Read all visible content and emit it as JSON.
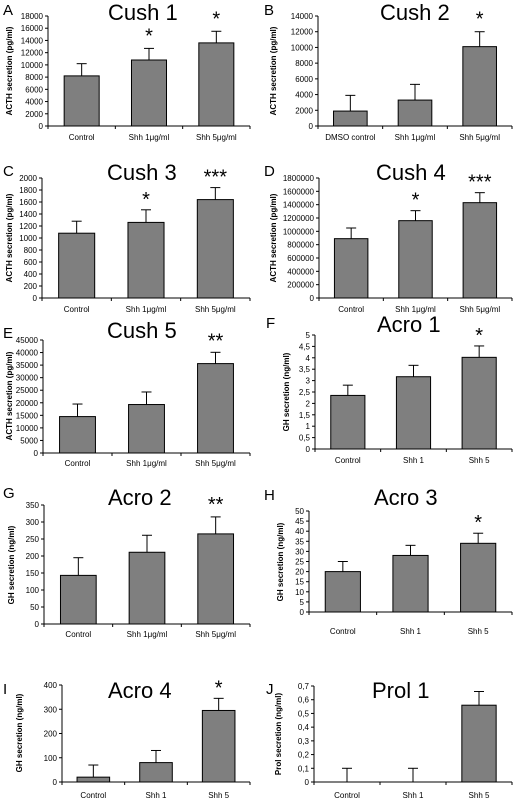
{
  "chart_data": [
    {
      "type": "bar",
      "panel": "A",
      "title": "Cush 1",
      "ylabel": "ACTH secretion (pg/ml)",
      "ylim": [
        0,
        18000
      ],
      "yticks": [
        "0",
        "2000",
        "4000",
        "6000",
        "8000",
        "10000",
        "12000",
        "14000",
        "16000",
        "18000"
      ],
      "categories": [
        "Control",
        "Shh 1μg/ml",
        "Shh 5μg/ml"
      ],
      "values": [
        8200,
        10800,
        13600
      ],
      "errors": [
        2000,
        1900,
        1900
      ],
      "significance": [
        "",
        "*",
        "*"
      ]
    },
    {
      "type": "bar",
      "panel": "B",
      "title": "Cush 2",
      "ylabel": "ACTH secretion (pg/ml)",
      "ylim": [
        0,
        14000
      ],
      "yticks": [
        "0",
        "2000",
        "4000",
        "6000",
        "8000",
        "10000",
        "12000",
        "14000"
      ],
      "categories": [
        "DMSO control",
        "Shh 1μg/ml",
        "Shh 5μg/ml"
      ],
      "values": [
        1900,
        3300,
        10100
      ],
      "errors": [
        2000,
        2000,
        1900
      ],
      "significance": [
        "",
        "",
        "*"
      ]
    },
    {
      "type": "bar",
      "panel": "C",
      "title": "Cush 3",
      "ylabel": "ACTH secretion (pg/ml)",
      "ylim": [
        0,
        2000
      ],
      "yticks": [
        "0",
        "200",
        "400",
        "600",
        "800",
        "1000",
        "1200",
        "1400",
        "1600",
        "1800",
        "2000"
      ],
      "categories": [
        "Control",
        "Shh 1μg/ml",
        "Shh 5μg/ml"
      ],
      "values": [
        1080,
        1260,
        1640
      ],
      "errors": [
        200,
        210,
        200
      ],
      "significance": [
        "",
        "*",
        "***"
      ]
    },
    {
      "type": "bar",
      "panel": "D",
      "title": "Cush 4",
      "ylabel": "ACTH secretion (pg/ml)",
      "ylim": [
        0,
        1800000
      ],
      "yticks": [
        "0",
        "200000",
        "400000",
        "600000",
        "800000",
        "1000000",
        "1200000",
        "1400000",
        "1600000",
        "1800000"
      ],
      "categories": [
        "Control",
        "Shh 1μg/ml",
        "Shh 5μg/ml"
      ],
      "values": [
        890000,
        1160000,
        1430000
      ],
      "errors": [
        160000,
        150000,
        150000
      ],
      "significance": [
        "",
        "*",
        "***"
      ]
    },
    {
      "type": "bar",
      "panel": "E",
      "title": "Cush 5",
      "ylabel": "ACTH secretion (pg/ml)",
      "ylim": [
        0,
        45000
      ],
      "yticks": [
        "0",
        "5000",
        "10000",
        "15000",
        "20000",
        "25000",
        "30000",
        "35000",
        "40000",
        "45000"
      ],
      "categories": [
        "Control",
        "Shh 1μg/ml",
        "Shh 5μg/ml"
      ],
      "values": [
        14500,
        19300,
        35600
      ],
      "errors": [
        5000,
        5000,
        4500
      ],
      "significance": [
        "",
        "",
        "**"
      ]
    },
    {
      "type": "bar",
      "panel": "F",
      "title": "Acro 1",
      "ylabel": "GH secretion (ng/ml)",
      "ylim": [
        0,
        5
      ],
      "yticks": [
        "0",
        "0,5",
        "1",
        "1,5",
        "2",
        "2,5",
        "3",
        "3,5",
        "4",
        "4,5",
        "5"
      ],
      "categories": [
        "Control",
        "Shh 1",
        "Shh 5"
      ],
      "values": [
        2.35,
        3.17,
        4.02
      ],
      "errors": [
        0.45,
        0.5,
        0.5
      ],
      "significance": [
        "",
        "",
        "*"
      ]
    },
    {
      "type": "bar",
      "panel": "G",
      "title": "Acro 2",
      "ylabel": "GH secretion (ng/ml)",
      "ylim": [
        0,
        350
      ],
      "yticks": [
        "0",
        "50",
        "100",
        "150",
        "200",
        "250",
        "300",
        "350"
      ],
      "categories": [
        "Control",
        "Shh 1μg/ml",
        "Shh 5μg/ml"
      ],
      "values": [
        143,
        211,
        265
      ],
      "errors": [
        52,
        50,
        50
      ],
      "significance": [
        "",
        "",
        "**"
      ]
    },
    {
      "type": "bar",
      "panel": "H",
      "title": "Acro 3",
      "ylabel": "GH secretion (ng/ml)",
      "ylim": [
        0,
        50
      ],
      "yticks": [
        "0",
        "5",
        "10",
        "15",
        "20",
        "25",
        "30",
        "35",
        "40",
        "45",
        "50"
      ],
      "categories": [
        "Control",
        "Shh 1",
        "Shh 5"
      ],
      "values": [
        20,
        28,
        34
      ],
      "errors": [
        5,
        5,
        5
      ],
      "significance": [
        "",
        "",
        "*"
      ]
    },
    {
      "type": "bar",
      "panel": "I",
      "title": "Acro 4",
      "ylabel": "GH secretion (ng/ml)",
      "ylim": [
        0,
        400
      ],
      "yticks": [
        "0",
        "100",
        "200",
        "300",
        "400"
      ],
      "categories": [
        "Control",
        "Shh 1",
        "Shh 5"
      ],
      "values": [
        20,
        80,
        295
      ],
      "errors": [
        50,
        50,
        50
      ],
      "significance": [
        "",
        "",
        "*"
      ]
    },
    {
      "type": "bar",
      "panel": "J",
      "title": "Prol 1",
      "ylabel": "Prol secretion (ng/ml)",
      "ylim": [
        0,
        0.7
      ],
      "yticks": [
        "0",
        "0,1",
        "0,2",
        "0,3",
        "0,4",
        "0,5",
        "0,6",
        "0,7"
      ],
      "categories": [
        "Control",
        "Shh 1",
        "Shh 5"
      ],
      "values": [
        0,
        0,
        0.56
      ],
      "errors": [
        0.1,
        0.1,
        0.1
      ],
      "significance": [
        "",
        "",
        ""
      ]
    }
  ]
}
